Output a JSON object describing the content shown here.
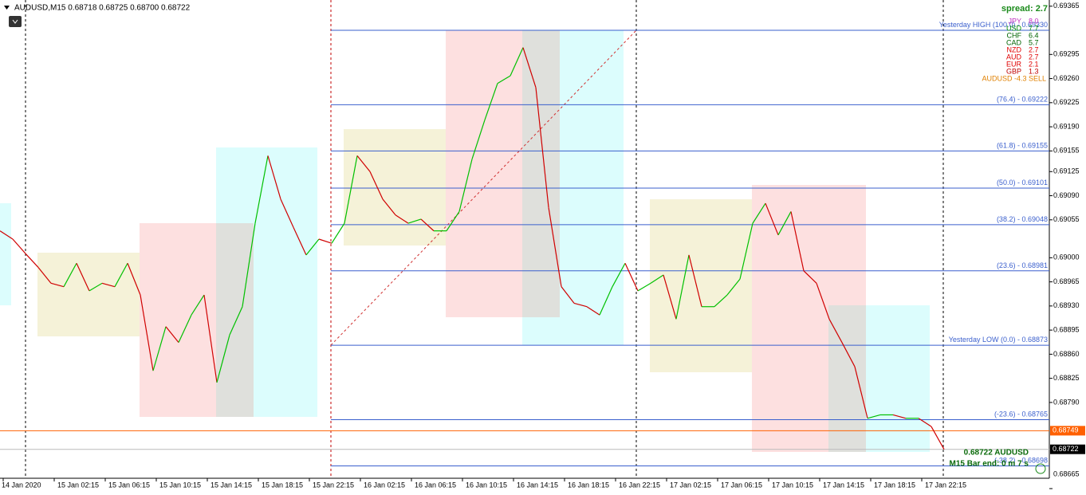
{
  "header": {
    "symbol_line": "AUDUSD,M15  0.68718 0.68725 0.68700 0.68722"
  },
  "indicator": {
    "spread": "spread: 2.7",
    "currencies": [
      {
        "currency": "JPY",
        "value": "8.0",
        "color": "#c030c0"
      },
      {
        "currency": "USD",
        "value": "7.7",
        "color": "#009000"
      },
      {
        "currency": "CHF",
        "value": "6.4",
        "color": "#006400"
      },
      {
        "currency": "CAD",
        "value": "5.7",
        "color": "#006400"
      },
      {
        "currency": "NZD",
        "value": "2.7",
        "color": "#e00000"
      },
      {
        "currency": "AUD",
        "value": "2.7",
        "color": "#e00000"
      },
      {
        "currency": "EUR",
        "value": "2.1",
        "color": "#e00000"
      },
      {
        "currency": "GBP",
        "value": "1.3",
        "color": "#c00000"
      }
    ],
    "signal": "AUDUSD -4.3 SELL"
  },
  "fib_levels": [
    {
      "name": "Yesterday HIGH (100.0)",
      "price": 0.6933,
      "price_label": "0.69330"
    },
    {
      "name": "(76.4)",
      "price": 0.69222
    },
    {
      "name": "(61.8)",
      "price": 0.69155
    },
    {
      "name": "(50.0)",
      "price": 0.69101
    },
    {
      "name": "(38.2)",
      "price": 0.69048
    },
    {
      "name": "(23.6)",
      "price": 0.68981
    },
    {
      "name": "Yesterday LOW (0.0)",
      "price": 0.68873
    },
    {
      "name": "(-23.6)",
      "price": 0.68765
    },
    {
      "name": "(-38.2)",
      "price": 0.68698
    }
  ],
  "price_tags": [
    {
      "price": 0.68749,
      "color": "#ff6000"
    },
    {
      "price": 0.68722,
      "color": "#000000"
    }
  ],
  "footer": {
    "quote": "0.68722  AUDUSD",
    "bar_timer": "M15 Bar end: 0 m 7 s"
  },
  "chart_data": {
    "type": "line",
    "up_color": "#00c000",
    "down_color": "#d00000",
    "ylim": [
      0.6868,
      0.69374
    ],
    "yticks": [
      0.69365,
      0.69295,
      {
        "value": 0.6926,
        "label": "0.69260"
      },
      0.69225,
      {
        "value": 0.6919,
        "label": "0.69190"
      },
      0.69155,
      0.69125,
      {
        "value": 0.6909,
        "label": "0.69090"
      },
      0.69055,
      {
        "value": 0.69,
        "label": "0.69000"
      },
      0.68965,
      {
        "value": 0.6893,
        "label": "0.68930"
      },
      0.68895,
      {
        "value": 0.6886,
        "label": "0.68860"
      },
      0.68825,
      {
        "value": 0.6879,
        "label": "0.68790"
      },
      0.68665
    ],
    "x_labels": [
      "14 Jan 2020",
      "15 Jan 02:15",
      "15 Jan 06:15",
      "15 Jan 10:15",
      "15 Jan 14:15",
      "15 Jan 18:15",
      "15 Jan 22:15",
      "16 Jan 02:15",
      "16 Jan 06:15",
      "16 Jan 10:15",
      "16 Jan 14:15",
      "16 Jan 18:15",
      "16 Jan 22:15",
      "17 Jan 02:15",
      "17 Jan 06:15",
      "17 Jan 10:15",
      "17 Jan 14:15",
      "17 Jan 18:15",
      "17 Jan 22:15"
    ],
    "values": [
      0.69039,
      0.69027,
      0.69006,
      0.68986,
      0.68963,
      0.68958,
      0.68992,
      0.68952,
      0.68963,
      0.68958,
      0.68992,
      0.68946,
      0.68836,
      0.689,
      0.68877,
      0.68917,
      0.68946,
      0.68819,
      0.68888,
      0.68929,
      0.6905,
      0.69148,
      0.69085,
      0.69044,
      0.69004,
      0.69027,
      0.69021,
      0.6905,
      0.69148,
      0.69125,
      0.69085,
      0.69062,
      0.6905,
      0.69056,
      0.69039,
      0.69039,
      0.69067,
      0.69143,
      0.692,
      0.69253,
      0.69264,
      0.69305,
      0.69247,
      0.69073,
      0.68958,
      0.68934,
      0.68929,
      0.68917,
      0.68958,
      0.68992,
      0.68952,
      0.68963,
      0.68975,
      0.68911,
      0.69004,
      0.68929,
      0.68929,
      0.68946,
      0.68969,
      0.6905,
      0.69079,
      0.69033,
      0.69067,
      0.68981,
      0.68963,
      0.68911,
      0.68877,
      0.68842,
      0.68767,
      0.68772,
      0.68772,
      0.68767,
      0.68767,
      0.68755,
      0.68722
    ]
  }
}
